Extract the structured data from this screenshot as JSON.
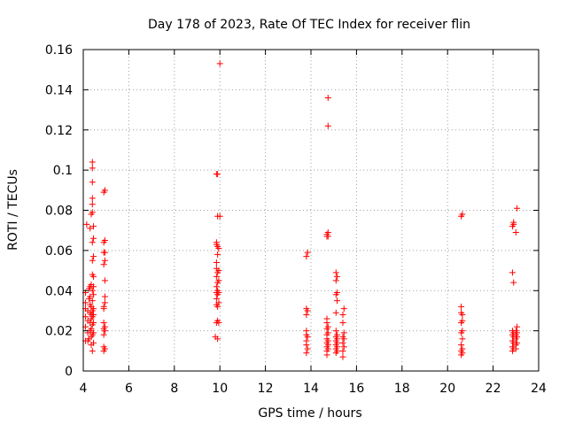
{
  "chart_data": {
    "type": "scatter",
    "title": "Day 178 of 2023, Rate Of TEC Index for receiver flin",
    "xlabel": "GPS time / hours",
    "ylabel": "ROTI / TECUs",
    "xlim": [
      4,
      24
    ],
    "ylim": [
      0,
      0.16
    ],
    "xticks": [
      4,
      6,
      8,
      10,
      12,
      14,
      16,
      18,
      20,
      22,
      24
    ],
    "yticks": [
      0,
      0.02,
      0.04,
      0.06,
      0.08,
      0.1,
      0.12,
      0.14,
      0.16
    ],
    "xtick_labels": [
      "4",
      "6",
      "8",
      "10",
      "12",
      "14",
      "16",
      "18",
      "20",
      "22",
      "24"
    ],
    "ytick_labels": [
      "0",
      "0.02",
      "0.04",
      "0.06",
      "0.08",
      "0.1",
      "0.12",
      "0.14",
      "0.16"
    ],
    "grid": true,
    "marker": "plus",
    "color": "#ff0000",
    "points": [
      [
        4.1,
        0.015
      ],
      [
        4.1,
        0.022
      ],
      [
        4.1,
        0.027
      ],
      [
        4.1,
        0.031
      ],
      [
        4.1,
        0.034
      ],
      [
        4.1,
        0.039
      ],
      [
        4.15,
        0.073
      ],
      [
        4.2,
        0.015
      ],
      [
        4.2,
        0.019
      ],
      [
        4.2,
        0.025
      ],
      [
        4.2,
        0.03
      ],
      [
        4.25,
        0.036
      ],
      [
        4.25,
        0.041
      ],
      [
        4.25,
        0.016
      ],
      [
        4.3,
        0.02
      ],
      [
        4.3,
        0.024
      ],
      [
        4.3,
        0.029
      ],
      [
        4.3,
        0.033
      ],
      [
        4.3,
        0.037
      ],
      [
        4.3,
        0.042
      ],
      [
        4.3,
        0.071
      ],
      [
        4.35,
        0.013
      ],
      [
        4.35,
        0.017
      ],
      [
        4.35,
        0.021
      ],
      [
        4.35,
        0.026
      ],
      [
        4.35,
        0.028
      ],
      [
        4.35,
        0.032
      ],
      [
        4.35,
        0.043
      ],
      [
        4.35,
        0.078
      ],
      [
        4.4,
        0.01
      ],
      [
        4.4,
        0.018
      ],
      [
        4.4,
        0.023
      ],
      [
        4.4,
        0.027
      ],
      [
        4.4,
        0.03
      ],
      [
        4.4,
        0.035
      ],
      [
        4.4,
        0.04
      ],
      [
        4.4,
        0.048
      ],
      [
        4.4,
        0.055
      ],
      [
        4.4,
        0.064
      ],
      [
        4.4,
        0.079
      ],
      [
        4.4,
        0.083
      ],
      [
        4.4,
        0.086
      ],
      [
        4.4,
        0.094
      ],
      [
        4.4,
        0.101
      ],
      [
        4.4,
        0.104
      ],
      [
        4.45,
        0.014
      ],
      [
        4.45,
        0.019
      ],
      [
        4.45,
        0.024
      ],
      [
        4.45,
        0.028
      ],
      [
        4.45,
        0.031
      ],
      [
        4.45,
        0.038
      ],
      [
        4.45,
        0.042
      ],
      [
        4.45,
        0.047
      ],
      [
        4.45,
        0.057
      ],
      [
        4.45,
        0.066
      ],
      [
        4.45,
        0.072
      ],
      [
        4.9,
        0.01
      ],
      [
        4.9,
        0.012
      ],
      [
        4.9,
        0.018
      ],
      [
        4.9,
        0.021
      ],
      [
        4.9,
        0.024
      ],
      [
        4.9,
        0.031
      ],
      [
        4.9,
        0.032
      ],
      [
        4.9,
        0.053
      ],
      [
        4.9,
        0.059
      ],
      [
        4.9,
        0.064
      ],
      [
        4.9,
        0.089
      ],
      [
        4.95,
        0.011
      ],
      [
        4.95,
        0.02
      ],
      [
        4.95,
        0.022
      ],
      [
        4.95,
        0.034
      ],
      [
        4.95,
        0.037
      ],
      [
        4.95,
        0.045
      ],
      [
        4.95,
        0.055
      ],
      [
        4.95,
        0.059
      ],
      [
        4.95,
        0.065
      ],
      [
        4.95,
        0.09
      ],
      [
        9.8,
        0.017
      ],
      [
        9.85,
        0.024
      ],
      [
        9.85,
        0.033
      ],
      [
        9.85,
        0.036
      ],
      [
        9.85,
        0.039
      ],
      [
        9.85,
        0.042
      ],
      [
        9.85,
        0.047
      ],
      [
        9.85,
        0.051
      ],
      [
        9.85,
        0.054
      ],
      [
        9.85,
        0.063
      ],
      [
        9.85,
        0.064
      ],
      [
        9.85,
        0.098
      ],
      [
        9.9,
        0.016
      ],
      [
        9.9,
        0.025
      ],
      [
        9.9,
        0.032
      ],
      [
        9.9,
        0.038
      ],
      [
        9.9,
        0.04
      ],
      [
        9.9,
        0.044
      ],
      [
        9.9,
        0.049
      ],
      [
        9.9,
        0.058
      ],
      [
        9.9,
        0.062
      ],
      [
        9.9,
        0.077
      ],
      [
        9.9,
        0.098
      ],
      [
        9.95,
        0.024
      ],
      [
        9.95,
        0.034
      ],
      [
        9.95,
        0.039
      ],
      [
        9.95,
        0.045
      ],
      [
        9.95,
        0.05
      ],
      [
        9.95,
        0.061
      ],
      [
        10.0,
        0.077
      ],
      [
        10.0,
        0.153
      ],
      [
        13.8,
        0.009
      ],
      [
        13.8,
        0.013
      ],
      [
        13.8,
        0.015
      ],
      [
        13.8,
        0.018
      ],
      [
        13.8,
        0.02
      ],
      [
        13.8,
        0.028
      ],
      [
        13.8,
        0.031
      ],
      [
        13.8,
        0.057
      ],
      [
        13.85,
        0.011
      ],
      [
        13.85,
        0.017
      ],
      [
        13.85,
        0.03
      ],
      [
        13.85,
        0.059
      ],
      [
        14.7,
        0.008
      ],
      [
        14.7,
        0.01
      ],
      [
        14.7,
        0.012
      ],
      [
        14.7,
        0.014
      ],
      [
        14.7,
        0.016
      ],
      [
        14.7,
        0.018
      ],
      [
        14.7,
        0.021
      ],
      [
        14.7,
        0.024
      ],
      [
        14.7,
        0.026
      ],
      [
        14.7,
        0.067
      ],
      [
        14.7,
        0.068
      ],
      [
        14.75,
        0.011
      ],
      [
        14.75,
        0.013
      ],
      [
        14.75,
        0.015
      ],
      [
        14.75,
        0.019
      ],
      [
        14.75,
        0.022
      ],
      [
        14.75,
        0.067
      ],
      [
        14.75,
        0.069
      ],
      [
        14.75,
        0.122
      ],
      [
        14.75,
        0.136
      ],
      [
        15.1,
        0.009
      ],
      [
        15.1,
        0.011
      ],
      [
        15.1,
        0.013
      ],
      [
        15.1,
        0.015
      ],
      [
        15.1,
        0.017
      ],
      [
        15.1,
        0.02
      ],
      [
        15.1,
        0.029
      ],
      [
        15.1,
        0.038
      ],
      [
        15.1,
        0.045
      ],
      [
        15.1,
        0.049
      ],
      [
        15.15,
        0.01
      ],
      [
        15.15,
        0.012
      ],
      [
        15.15,
        0.014
      ],
      [
        15.15,
        0.016
      ],
      [
        15.15,
        0.018
      ],
      [
        15.15,
        0.035
      ],
      [
        15.15,
        0.039
      ],
      [
        15.15,
        0.047
      ],
      [
        15.4,
        0.007
      ],
      [
        15.4,
        0.01
      ],
      [
        15.4,
        0.014
      ],
      [
        15.4,
        0.017
      ],
      [
        15.4,
        0.024
      ],
      [
        15.4,
        0.028
      ],
      [
        15.45,
        0.012
      ],
      [
        15.45,
        0.016
      ],
      [
        15.45,
        0.019
      ],
      [
        15.45,
        0.031
      ],
      [
        20.6,
        0.008
      ],
      [
        20.6,
        0.01
      ],
      [
        20.6,
        0.013
      ],
      [
        20.6,
        0.019
      ],
      [
        20.6,
        0.024
      ],
      [
        20.6,
        0.029
      ],
      [
        20.6,
        0.032
      ],
      [
        20.6,
        0.077
      ],
      [
        20.65,
        0.009
      ],
      [
        20.65,
        0.011
      ],
      [
        20.65,
        0.016
      ],
      [
        20.65,
        0.02
      ],
      [
        20.65,
        0.025
      ],
      [
        20.65,
        0.028
      ],
      [
        20.65,
        0.078
      ],
      [
        22.85,
        0.01
      ],
      [
        22.85,
        0.012
      ],
      [
        22.85,
        0.015
      ],
      [
        22.85,
        0.018
      ],
      [
        22.85,
        0.02
      ],
      [
        22.85,
        0.049
      ],
      [
        22.85,
        0.072
      ],
      [
        22.9,
        0.011
      ],
      [
        22.9,
        0.014
      ],
      [
        22.9,
        0.017
      ],
      [
        22.9,
        0.019
      ],
      [
        22.9,
        0.044
      ],
      [
        22.9,
        0.073
      ],
      [
        22.9,
        0.074
      ],
      [
        23.0,
        0.011
      ],
      [
        23.0,
        0.013
      ],
      [
        23.0,
        0.016
      ],
      [
        23.0,
        0.018
      ],
      [
        23.0,
        0.02
      ],
      [
        23.0,
        0.069
      ],
      [
        23.05,
        0.014
      ],
      [
        23.05,
        0.017
      ],
      [
        23.05,
        0.019
      ],
      [
        23.05,
        0.022
      ],
      [
        23.05,
        0.081
      ]
    ]
  }
}
